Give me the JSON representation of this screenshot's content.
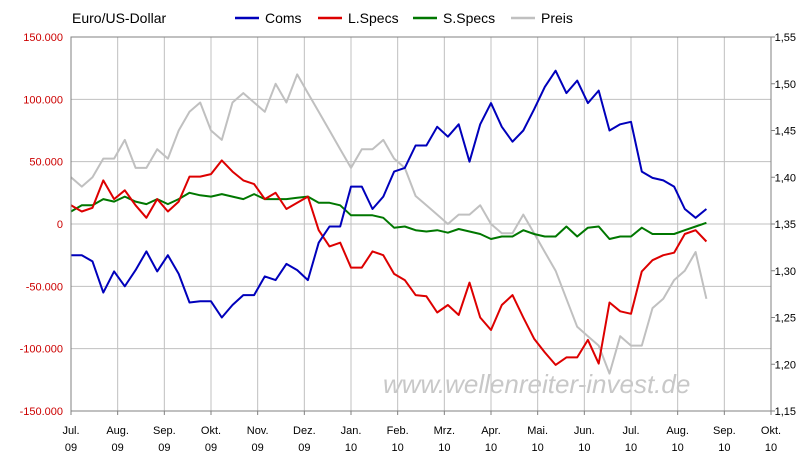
{
  "chart_data": {
    "type": "line",
    "title": "Euro/US-Dollar",
    "watermark": "www.wellenreiter-invest.de",
    "x_labels": [
      {
        "month": "Jul.",
        "year": "09"
      },
      {
        "month": "Aug.",
        "year": "09"
      },
      {
        "month": "Sep.",
        "year": "09"
      },
      {
        "month": "Okt.",
        "year": "09"
      },
      {
        "month": "Nov.",
        "year": "09"
      },
      {
        "month": "Dez.",
        "year": "09"
      },
      {
        "month": "Jan.",
        "year": "10"
      },
      {
        "month": "Feb.",
        "year": "10"
      },
      {
        "month": "Mrz.",
        "year": "10"
      },
      {
        "month": "Apr.",
        "year": "10"
      },
      {
        "month": "Mai.",
        "year": "10"
      },
      {
        "month": "Jun.",
        "year": "10"
      },
      {
        "month": "Jul.",
        "year": "10"
      },
      {
        "month": "Aug.",
        "year": "10"
      },
      {
        "month": "Sep.",
        "year": "10"
      },
      {
        "month": "Okt.",
        "year": "10"
      }
    ],
    "y_left": {
      "ylim": [
        -150000,
        150000
      ],
      "ticks": [
        "150.000",
        "100.000",
        "50.000",
        "0",
        "-50.000",
        "-100.000",
        "-150.000"
      ],
      "tick_values": [
        150000,
        100000,
        50000,
        0,
        -50000,
        -100000,
        -150000
      ]
    },
    "y_right": {
      "ylim": [
        1.15,
        1.55
      ],
      "ticks": [
        "1,55",
        "1,50",
        "1,45",
        "1,40",
        "1,35",
        "1,30",
        "1,25",
        "1,20",
        "1,15"
      ],
      "tick_values": [
        1.55,
        1.5,
        1.45,
        1.4,
        1.35,
        1.3,
        1.25,
        1.2,
        1.15
      ]
    },
    "x_unit": "weeks since Jul. 09 (weekly)",
    "grid": true,
    "legend_position": "top",
    "series": [
      {
        "name": "Coms",
        "color": "#0000bb",
        "axis": "left",
        "values": [
          -25000,
          -25000,
          -30000,
          -55000,
          -38000,
          -50000,
          -37000,
          -22000,
          -38000,
          -25000,
          -40000,
          -63000,
          -62000,
          -62000,
          -75000,
          -65000,
          -57000,
          -57000,
          -42000,
          -45000,
          -32000,
          -37000,
          -45000,
          -15000,
          -2000,
          -2000,
          30000,
          30000,
          12000,
          22000,
          42000,
          45000,
          63000,
          63000,
          78000,
          70000,
          80000,
          50000,
          80000,
          97000,
          78000,
          66000,
          75000,
          92000,
          110000,
          123000,
          105000,
          115000,
          97000,
          107000,
          75000,
          80000,
          82000,
          42000,
          37000,
          35000,
          30000,
          12000,
          5000,
          12000
        ]
      },
      {
        "name": "L.Specs",
        "color": "#dd0000",
        "axis": "left",
        "values": [
          15000,
          10000,
          13000,
          35000,
          20000,
          27000,
          15000,
          5000,
          20000,
          10000,
          18000,
          38000,
          38000,
          40000,
          51000,
          42000,
          35000,
          32000,
          20000,
          25000,
          12000,
          17000,
          22000,
          -5000,
          -18000,
          -15000,
          -35000,
          -35000,
          -22000,
          -25000,
          -40000,
          -45000,
          -57000,
          -58000,
          -71000,
          -65000,
          -73000,
          -47000,
          -75000,
          -85000,
          -65000,
          -57000,
          -75000,
          -92000,
          -103000,
          -113000,
          -107000,
          -107000,
          -93000,
          -112000,
          -63000,
          -70000,
          -72000,
          -38000,
          -29000,
          -25000,
          -23000,
          -8000,
          -5000,
          -14000
        ]
      },
      {
        "name": "S.Specs",
        "color": "#007700",
        "axis": "left",
        "values": [
          10000,
          15000,
          15000,
          20000,
          18000,
          22000,
          18000,
          16000,
          20000,
          16000,
          20000,
          25000,
          23000,
          22000,
          24000,
          22000,
          20000,
          24000,
          20000,
          20000,
          20000,
          21000,
          22000,
          17000,
          17000,
          15000,
          7000,
          7000,
          7000,
          5000,
          -3000,
          -2000,
          -5000,
          -6000,
          -5000,
          -7000,
          -4000,
          -6000,
          -8000,
          -12000,
          -10000,
          -10000,
          -5000,
          -8000,
          -10000,
          -10000,
          -2000,
          -10000,
          -3000,
          -2000,
          -12000,
          -10000,
          -10000,
          -3000,
          -8000,
          -8000,
          -8000,
          -5000,
          -2000,
          1000
        ]
      },
      {
        "name": "Preis",
        "color": "#c0c0c0",
        "axis": "right",
        "values": [
          1.4,
          1.39,
          1.4,
          1.42,
          1.42,
          1.44,
          1.41,
          1.41,
          1.43,
          1.42,
          1.45,
          1.47,
          1.48,
          1.45,
          1.44,
          1.48,
          1.49,
          1.48,
          1.47,
          1.5,
          1.48,
          1.51,
          1.49,
          1.47,
          1.45,
          1.43,
          1.41,
          1.43,
          1.43,
          1.44,
          1.42,
          1.41,
          1.38,
          1.37,
          1.36,
          1.35,
          1.36,
          1.36,
          1.37,
          1.35,
          1.34,
          1.34,
          1.36,
          1.34,
          1.32,
          1.3,
          1.27,
          1.24,
          1.23,
          1.22,
          1.19,
          1.23,
          1.22,
          1.22,
          1.26,
          1.27,
          1.29,
          1.3,
          1.32,
          1.27
        ]
      }
    ]
  }
}
